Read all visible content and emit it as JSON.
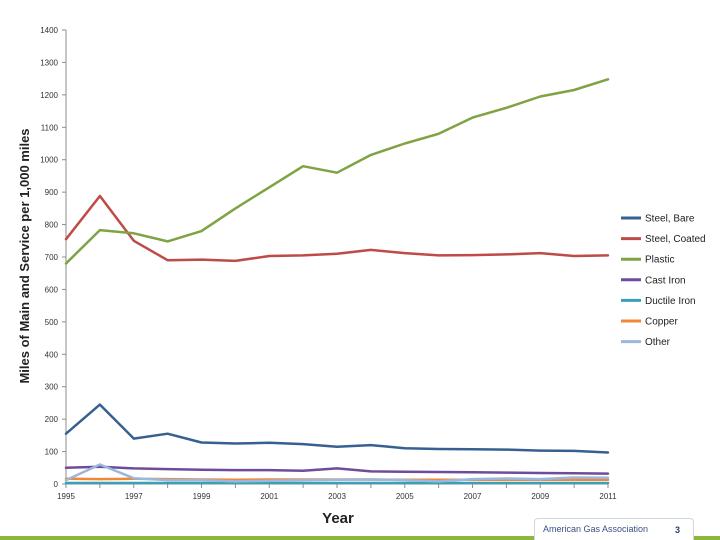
{
  "chart_data": {
    "type": "line",
    "title": "",
    "xlabel": "Year",
    "ylabel": "Miles of Main and Service per 1,000 miles",
    "xlim": [
      1995,
      2011
    ],
    "ylim": [
      0,
      1400
    ],
    "x_ticks": [
      "1995",
      "1997",
      "1999",
      "2001",
      "2003",
      "2005",
      "2007",
      "2009",
      "2011"
    ],
    "y_ticks": [
      "0",
      "100",
      "200",
      "300",
      "400",
      "500",
      "600",
      "700",
      "800",
      "900",
      "1000",
      "1100",
      "1200",
      "1300",
      "1400"
    ],
    "grid": false,
    "legend_position": "right",
    "x": [
      1995,
      1996,
      1997,
      1998,
      1999,
      2000,
      2001,
      2002,
      2003,
      2004,
      2005,
      2006,
      2007,
      2008,
      2009,
      2010,
      2011
    ],
    "series": [
      {
        "name": "Steel, Bare",
        "color": "#376092",
        "values": [
          155,
          245,
          140,
          155,
          128,
          125,
          127,
          123,
          115,
          120,
          110,
          108,
          107,
          106,
          103,
          102,
          97
        ]
      },
      {
        "name": "Steel, Coated",
        "color": "#be4b48",
        "values": [
          755,
          888,
          750,
          690,
          692,
          688,
          703,
          705,
          710,
          722,
          712,
          705,
          706,
          708,
          712,
          703,
          705
        ]
      },
      {
        "name": "Plastic",
        "color": "#7fa342",
        "values": [
          680,
          783,
          773,
          748,
          780,
          850,
          915,
          980,
          960,
          1015,
          1050,
          1080,
          1130,
          1160,
          1195,
          1215,
          1248
        ]
      },
      {
        "name": "Cast Iron",
        "color": "#6f4c9b",
        "values": [
          50,
          53,
          48,
          46,
          44,
          43,
          43,
          41,
          48,
          39,
          38,
          37,
          36,
          35,
          34,
          33,
          32
        ]
      },
      {
        "name": "Ductile Iron",
        "color": "#3b9fb5",
        "values": [
          3,
          3,
          3,
          3,
          3,
          3,
          3,
          3,
          3,
          3,
          3,
          3,
          3,
          3,
          3,
          3,
          3
        ]
      },
      {
        "name": "Copper",
        "color": "#f0883a",
        "values": [
          16,
          15,
          16,
          15,
          14,
          13,
          14,
          14,
          14,
          14,
          13,
          13,
          13,
          13,
          13,
          13,
          13
        ]
      },
      {
        "name": "Other",
        "color": "#9bb7dc",
        "values": [
          12,
          60,
          18,
          12,
          12,
          8,
          10,
          12,
          13,
          14,
          12,
          8,
          15,
          17,
          15,
          20,
          19
        ]
      }
    ]
  },
  "footer": {
    "organization": "American Gas Association",
    "page_number": "3",
    "accent_color": "#8db63c"
  }
}
